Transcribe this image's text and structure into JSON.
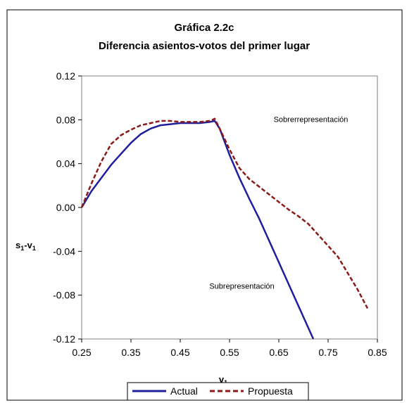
{
  "chart_data": {
    "type": "line",
    "title": "Gráfica 2.2c",
    "subtitle": "Diferencia asientos-votos del primer lugar",
    "xlabel": "v",
    "xlabel_sub": "1",
    "ylabel_parts": [
      "s",
      "1",
      "-v",
      "1"
    ],
    "xlim": [
      0.25,
      0.85
    ],
    "ylim": [
      -0.12,
      0.12
    ],
    "x_ticks": [
      "0.25",
      "0.35",
      "0.45",
      "0.55",
      "0.65",
      "0.75",
      "0.85"
    ],
    "y_ticks": [
      "0.12",
      "0.08",
      "0.04",
      "0.00",
      "-0.04",
      "-0.08",
      "-0.12"
    ],
    "grid": false,
    "legend_position": "bottom",
    "annotations": [
      {
        "text": "Sobrerrepresentación",
        "x": 0.715,
        "y": 0.078
      },
      {
        "text": "Subrepresentación",
        "x": 0.575,
        "y": -0.074
      }
    ],
    "series": [
      {
        "name": "Actual",
        "color": "#1f1f9e",
        "style": "solid",
        "x": [
          0.25,
          0.27,
          0.29,
          0.31,
          0.33,
          0.35,
          0.37,
          0.39,
          0.41,
          0.43,
          0.45,
          0.47,
          0.49,
          0.51,
          0.52,
          0.53,
          0.55,
          0.57,
          0.59,
          0.61,
          0.63,
          0.65,
          0.67,
          0.69,
          0.71,
          0.72
        ],
        "y": [
          0.0,
          0.015,
          0.027,
          0.039,
          0.049,
          0.059,
          0.067,
          0.072,
          0.075,
          0.076,
          0.077,
          0.077,
          0.077,
          0.078,
          0.079,
          0.072,
          0.048,
          0.027,
          0.008,
          -0.01,
          -0.03,
          -0.05,
          -0.07,
          -0.09,
          -0.11,
          -0.12
        ]
      },
      {
        "name": "Propuesta",
        "color": "#8b1a1a",
        "style": "dashed",
        "x": [
          0.25,
          0.27,
          0.29,
          0.31,
          0.33,
          0.35,
          0.37,
          0.39,
          0.41,
          0.43,
          0.45,
          0.47,
          0.49,
          0.51,
          0.52,
          0.53,
          0.55,
          0.57,
          0.59,
          0.61,
          0.63,
          0.65,
          0.67,
          0.69,
          0.71,
          0.73,
          0.75,
          0.77,
          0.79,
          0.81,
          0.83
        ],
        "y": [
          0.0,
          0.022,
          0.042,
          0.058,
          0.066,
          0.071,
          0.075,
          0.077,
          0.079,
          0.079,
          0.078,
          0.078,
          0.078,
          0.079,
          0.081,
          0.072,
          0.053,
          0.036,
          0.026,
          0.019,
          0.012,
          0.005,
          -0.002,
          -0.008,
          -0.015,
          -0.025,
          -0.035,
          -0.045,
          -0.06,
          -0.075,
          -0.092
        ]
      }
    ]
  }
}
